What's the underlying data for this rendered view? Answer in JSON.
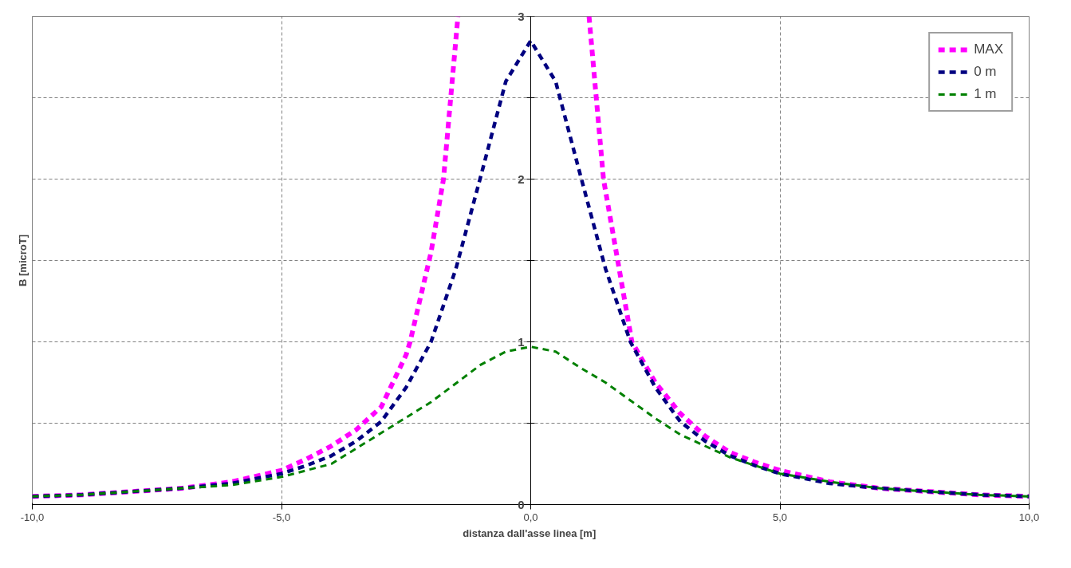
{
  "chart_data": {
    "type": "line",
    "xlabel": "distanza dall'asse  linea [m]",
    "ylabel": "B [microT]",
    "xlim": [
      -10,
      10
    ],
    "ylim": [
      0,
      3
    ],
    "xticks": [
      {
        "value": -10,
        "label": "-10,0"
      },
      {
        "value": -5,
        "label": "-5,0"
      },
      {
        "value": 0,
        "label": "0,0"
      },
      {
        "value": 5,
        "label": "5,0"
      },
      {
        "value": 10,
        "label": "10,0"
      }
    ],
    "yticks": [
      0,
      {
        "value": 0.5,
        "label": null
      },
      1,
      {
        "value": 1.5,
        "label": null
      },
      2,
      {
        "value": 2.5,
        "label": null
      },
      3
    ],
    "grid": true,
    "legend": "top right",
    "line_style": "dashed",
    "marker": "none",
    "series": [
      {
        "name": "MAX",
        "color": "#ff00ff",
        "x": [
          -10,
          -9,
          -8,
          -7,
          -6,
          -5,
          -4.5,
          -4,
          -3.5,
          -3,
          -2.5,
          -2.42,
          -2,
          -1.75,
          -1.46,
          0,
          1.17,
          1.46,
          2.03,
          2.5,
          3,
          3.5,
          4,
          4.5,
          5,
          6,
          7,
          8,
          9,
          10
        ],
        "values": [
          0.05,
          0.06,
          0.08,
          0.1,
          0.14,
          0.21,
          0.28,
          0.36,
          0.46,
          0.6,
          0.92,
          1.0,
          1.55,
          2.0,
          3.0,
          null,
          3.0,
          2.0,
          1.0,
          0.75,
          0.56,
          0.42,
          0.32,
          0.26,
          0.21,
          0.14,
          0.1,
          0.08,
          0.06,
          0.05
        ]
      },
      {
        "name": "0 m",
        "color": "#000080",
        "x": [
          -10,
          -9,
          -8,
          -7,
          -6,
          -5,
          -4.5,
          -4,
          -3.5,
          -3,
          -2.5,
          -2,
          -1.5,
          -1,
          -0.5,
          0,
          0.5,
          1,
          1.5,
          2,
          2.5,
          3,
          3.5,
          4,
          4.5,
          5,
          6,
          7,
          8,
          9,
          10
        ],
        "values": [
          0.05,
          0.06,
          0.08,
          0.1,
          0.13,
          0.19,
          0.24,
          0.3,
          0.39,
          0.51,
          0.72,
          1.0,
          1.45,
          2.02,
          2.6,
          2.85,
          2.6,
          2.02,
          1.45,
          1.0,
          0.72,
          0.51,
          0.39,
          0.3,
          0.24,
          0.19,
          0.13,
          0.1,
          0.08,
          0.06,
          0.05
        ]
      },
      {
        "name": "1 m",
        "color": "#008000",
        "x": [
          -10,
          -9,
          -8,
          -7,
          -6,
          -5,
          -4,
          -3,
          -2,
          -1,
          -0.5,
          0,
          0.5,
          1,
          1.5,
          2,
          2.5,
          3,
          4,
          5,
          6,
          7,
          8,
          9,
          10
        ],
        "values": [
          0.05,
          0.06,
          0.08,
          0.1,
          0.12,
          0.17,
          0.25,
          0.44,
          0.63,
          0.86,
          0.94,
          0.97,
          0.94,
          0.84,
          0.75,
          0.64,
          0.53,
          0.43,
          0.29,
          0.19,
          0.14,
          0.1,
          0.08,
          0.06,
          0.05
        ]
      }
    ]
  }
}
